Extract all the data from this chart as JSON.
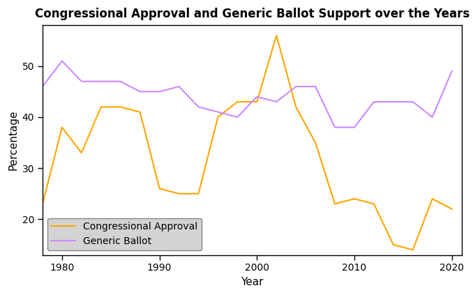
{
  "title": "Congressional Approval and Generic Ballot Support over the Years",
  "xlabel": "Year",
  "ylabel": "Percentage",
  "congressional_approval": {
    "years": [
      1978,
      1980,
      1982,
      1984,
      1986,
      1988,
      1990,
      1992,
      1994,
      1996,
      1998,
      2000,
      2002,
      2004,
      2006,
      2008,
      2010,
      2012,
      2014,
      2016,
      2018,
      2020
    ],
    "values": [
      23,
      38,
      33,
      42,
      42,
      41,
      26,
      25,
      25,
      40,
      43,
      43,
      56,
      42,
      35,
      23,
      24,
      23,
      15,
      14,
      24,
      22
    ]
  },
  "generic_ballot": {
    "years": [
      1978,
      1980,
      1982,
      1984,
      1986,
      1988,
      1990,
      1992,
      1994,
      1996,
      1998,
      2000,
      2002,
      2004,
      2006,
      2008,
      2010,
      2012,
      2014,
      2016,
      2018,
      2020
    ],
    "values": [
      46,
      51,
      47,
      47,
      47,
      45,
      45,
      46,
      42,
      41,
      40,
      44,
      43,
      46,
      46,
      38,
      38,
      43,
      43,
      43,
      40,
      49
    ]
  },
  "approval_color": "#FFA500",
  "ballot_color": "#CC88FF",
  "ylim": [
    13,
    58
  ],
  "yticks": [
    20,
    30,
    40,
    50
  ],
  "xticks": [
    1980,
    1990,
    2000,
    2010,
    2020
  ],
  "xlim": [
    1978,
    2021
  ],
  "legend_loc": "lower left",
  "bg_color": "#ffffff",
  "plot_bg_color": "#ffffff",
  "legend_bg_color": "#d3d3d3"
}
